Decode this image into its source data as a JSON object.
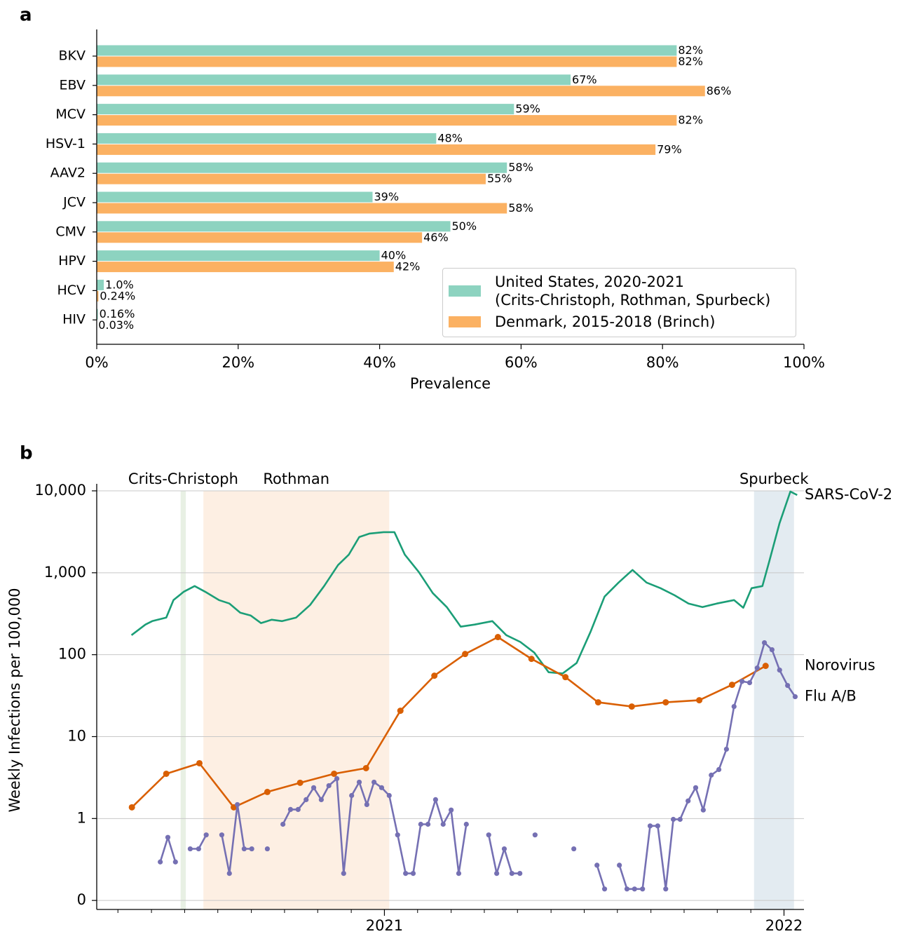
{
  "chart_data": [
    {
      "panel_label": "a",
      "type": "bar",
      "orientation": "horizontal",
      "categories": [
        "BKV",
        "EBV",
        "MCV",
        "HSV-1",
        "AAV2",
        "JCV",
        "CMV",
        "HPV",
        "HCV",
        "HIV"
      ],
      "series": [
        {
          "name": "United States, 2020-2021\n(Crits-Christoph, Rothman, Spurbeck)",
          "color": "#8dd3c0",
          "values": [
            82,
            67,
            59,
            48,
            58,
            39,
            50,
            40,
            1.0,
            0.16
          ],
          "value_labels": [
            "82%",
            "67%",
            "59%",
            "48%",
            "58%",
            "39%",
            "50%",
            "40%",
            "1.0%",
            "0.16%"
          ]
        },
        {
          "name": "Denmark, 2015-2018 (Brinch)",
          "color": "#fbb162",
          "values": [
            82,
            86,
            82,
            79,
            55,
            58,
            46,
            42,
            0.24,
            0.03
          ],
          "value_labels": [
            "82%",
            "86%",
            "82%",
            "79%",
            "55%",
            "58%",
            "46%",
            "42%",
            "0.24%",
            "0.03%"
          ]
        }
      ],
      "xlabel": "Prevalence",
      "xlim": [
        0,
        100
      ],
      "xticks": [
        {
          "value": 0,
          "label": "0%"
        },
        {
          "value": 20,
          "label": "20%"
        },
        {
          "value": 40,
          "label": "40%"
        },
        {
          "value": 60,
          "label": "60%"
        },
        {
          "value": 80,
          "label": "80%"
        },
        {
          "value": 100,
          "label": "100%"
        }
      ],
      "legend": "lower right"
    },
    {
      "panel_label": "b",
      "type": "line",
      "ylabel": "Weekly Infections per 100,000",
      "yscale": "symlog",
      "ylim": [
        -0.11,
        10000
      ],
      "yticks": [
        0,
        1,
        10,
        100,
        {
          "value": 1000,
          "label": "1,000"
        },
        {
          "value": 10000,
          "label": "10,000"
        }
      ],
      "grid": true,
      "xlim": [
        2020.28,
        2022.05
      ],
      "xticks": [
        2021,
        2022
      ],
      "xminorticks": [
        2020.333,
        2020.417,
        2020.5,
        2020.583,
        2020.667,
        2020.75,
        2020.833,
        2020.917,
        2021.083,
        2021.167,
        2021.25,
        2021.333,
        2021.417,
        2021.5,
        2021.583,
        2021.667,
        2021.75,
        2021.833,
        2021.917
      ],
      "regions": [
        {
          "label": "Crits-Christoph",
          "start": 2020.49,
          "end": 2020.503,
          "color": "#e8f0e4",
          "text_color": "#3aa23a"
        },
        {
          "label": "Rothman",
          "start": 2020.547,
          "end": 2021.012,
          "color": "#fdefe3",
          "text_color": "#f28a2b"
        },
        {
          "label": "Spurbeck",
          "start": 2021.925,
          "end": 2022.025,
          "color": "#e3ebf1",
          "text_color": "#2f7dbf"
        }
      ],
      "series": [
        {
          "name": "SARS-CoV-2",
          "color": "#1b9e77",
          "markers": false,
          "x": [
            2020.367,
            2020.402,
            2020.419,
            2020.454,
            2020.472,
            2020.498,
            2020.525,
            2020.551,
            2020.586,
            2020.612,
            2020.639,
            2020.665,
            2020.691,
            2020.718,
            2020.744,
            2020.779,
            2020.814,
            2020.849,
            2020.884,
            2020.911,
            2020.937,
            2020.963,
            2020.998,
            2021.025,
            2021.051,
            2021.086,
            2021.121,
            2021.156,
            2021.191,
            2021.226,
            2021.27,
            2021.305,
            2021.34,
            2021.375,
            2021.411,
            2021.446,
            2021.481,
            2021.516,
            2021.551,
            2021.586,
            2021.621,
            2021.656,
            2021.691,
            2021.726,
            2021.761,
            2021.796,
            2021.832,
            2021.875,
            2021.898,
            2021.919,
            2021.946,
            2021.963,
            2021.989,
            2022.016,
            2022.033
          ],
          "values": [
            173,
            233,
            257,
            284,
            464,
            588,
            688,
            588,
            464,
            421,
            326,
            301,
            243,
            267,
            257,
            284,
            404,
            688,
            1242,
            1667,
            2730,
            3010,
            3130,
            3130,
            1667,
            1020,
            565,
            381,
            220,
            233,
            257,
            173,
            143,
            106,
            61,
            59,
            79,
            191,
            512,
            759,
            1082,
            759,
            649,
            532,
            421,
            381,
            421,
            464,
            374,
            649,
            688,
            1370,
            4045,
            9800,
            8890
          ]
        },
        {
          "name": "Norovirus",
          "color": "#d95f02",
          "markers": true,
          "x": [
            2020.368,
            2020.454,
            2020.537,
            2020.623,
            2020.707,
            2020.789,
            2020.874,
            2020.954,
            2021.04,
            2021.125,
            2021.202,
            2021.284,
            2021.368,
            2021.453,
            2021.535,
            2021.619,
            2021.704,
            2021.788,
            2021.87,
            2021.954
          ],
          "values": [
            1.37,
            3.52,
            4.73,
            1.37,
            2.11,
            2.73,
            3.52,
            4.12,
            20.7,
            55.4,
            102,
            164,
            88.9,
            53.2,
            26.2,
            23.3,
            26.2,
            27.8,
            42.9,
            73.0
          ]
        },
        {
          "name": "Flu A/B",
          "color": "#7570b3",
          "markers": true,
          "x": [
            2020.439,
            2020.458,
            2020.477,
            null,
            2020.514,
            2020.535,
            2020.554,
            null,
            2020.593,
            2020.612,
            2020.632,
            2020.649,
            2020.668,
            null,
            2020.707,
            null,
            2020.746,
            2020.765,
            2020.784,
            2020.804,
            2020.823,
            2020.842,
            2020.861,
            2020.881,
            2020.898,
            2020.918,
            2020.937,
            2020.956,
            2020.974,
            2020.993,
            2021.012,
            2021.033,
            2021.053,
            2021.072,
            2021.091,
            2021.109,
            2021.128,
            2021.147,
            2021.167,
            2021.186,
            2021.205,
            null,
            2021.261,
            2021.281,
            2021.3,
            2021.319,
            2021.339,
            null,
            2021.377,
            null,
            2021.474,
            null,
            2021.532,
            2021.551,
            null,
            2021.588,
            2021.607,
            2021.626,
            2021.646,
            2021.665,
            2021.684,
            2021.704,
            2021.723,
            2021.74,
            2021.76,
            2021.779,
            2021.798,
            2021.818,
            2021.837,
            2021.856,
            2021.875,
            2021.895,
            2021.914,
            2021.933,
            2021.951,
            2021.97,
            2021.989,
            2022.009,
            2022.028
          ],
          "values": [
            0.47,
            0.77,
            0.47,
            null,
            0.63,
            0.63,
            0.8,
            null,
            0.8,
            0.33,
            1.48,
            0.63,
            0.63,
            null,
            0.63,
            null,
            0.93,
            1.29,
            1.29,
            1.7,
            2.38,
            1.7,
            2.52,
            3.07,
            0.33,
            1.91,
            2.78,
            1.48,
            2.78,
            2.38,
            1.91,
            0.8,
            0.33,
            0.33,
            0.93,
            0.93,
            1.7,
            0.93,
            1.27,
            0.33,
            0.93,
            null,
            0.8,
            0.33,
            0.63,
            0.33,
            0.33,
            null,
            0.8,
            null,
            0.63,
            null,
            0.43,
            0.14,
            null,
            0.43,
            0.14,
            0.14,
            0.14,
            0.91,
            0.91,
            0.14,
            0.99,
            0.99,
            1.64,
            2.38,
            1.27,
            3.39,
            3.96,
            7.02,
            23.3,
            47.3,
            45.5,
            68.8,
            140,
            115,
            64.9,
            42.1,
            30.7
          ]
        }
      ]
    }
  ]
}
